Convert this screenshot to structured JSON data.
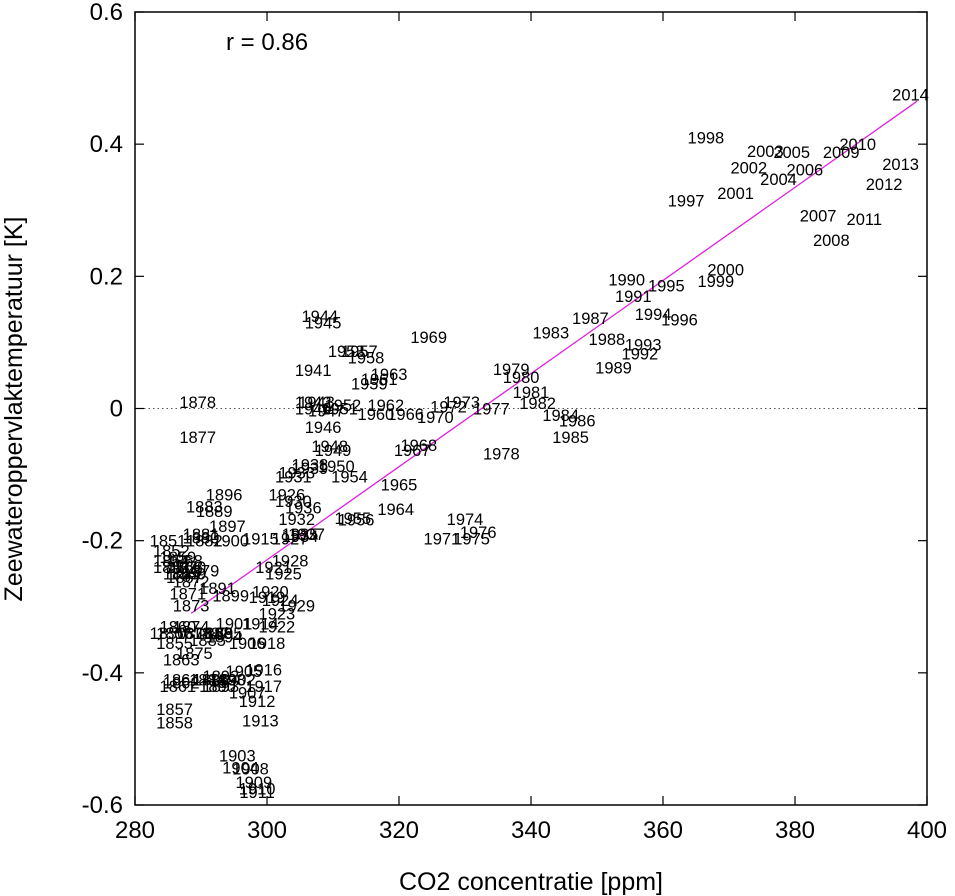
{
  "chart_data": {
    "type": "scatter",
    "title": "",
    "xlabel": "CO2 concentratie [ppm]",
    "ylabel": "Zeewateroppervlaktemperatuur [K]",
    "xlim": [
      280,
      400
    ],
    "ylim": [
      -0.6,
      0.6
    ],
    "xticks": [
      280,
      300,
      320,
      340,
      360,
      380,
      400
    ],
    "yticks": [
      0.6,
      0.4,
      0.2,
      0,
      -0.2,
      -0.4,
      -0.6
    ],
    "ytick_labels": [
      "0.6",
      "0.4",
      "0.2",
      "0",
      "-0.2",
      "-0.4",
      "-0.6"
    ],
    "annotation": "r =  0.86",
    "zero_line": {
      "y": 0,
      "style": "dotted"
    },
    "trend_line": {
      "color": "#e020e0",
      "x": [
        288.5,
        398.5
      ],
      "y": [
        -0.31,
        0.465
      ]
    },
    "point_color": "#000000",
    "points": [
      {
        "label": "2014",
        "x": 397.5,
        "y": 0.475
      },
      {
        "label": "1998",
        "x": 366.5,
        "y": 0.41
      },
      {
        "label": "2003",
        "x": 375.5,
        "y": 0.39
      },
      {
        "label": "2005",
        "x": 379.5,
        "y": 0.388
      },
      {
        "label": "2010",
        "x": 389.5,
        "y": 0.4
      },
      {
        "label": "2009",
        "x": 387.0,
        "y": 0.388
      },
      {
        "label": "2002",
        "x": 373.0,
        "y": 0.365
      },
      {
        "label": "2006",
        "x": 381.5,
        "y": 0.362
      },
      {
        "label": "2013",
        "x": 396.0,
        "y": 0.37
      },
      {
        "label": "2004",
        "x": 377.5,
        "y": 0.347
      },
      {
        "label": "2001",
        "x": 371.0,
        "y": 0.326
      },
      {
        "label": "2012",
        "x": 393.5,
        "y": 0.34
      },
      {
        "label": "1997",
        "x": 363.5,
        "y": 0.315
      },
      {
        "label": "2007",
        "x": 383.5,
        "y": 0.292
      },
      {
        "label": "2011",
        "x": 390.5,
        "y": 0.287
      },
      {
        "label": "2008",
        "x": 385.5,
        "y": 0.255
      },
      {
        "label": "2000",
        "x": 369.5,
        "y": 0.21
      },
      {
        "label": "1999",
        "x": 368.0,
        "y": 0.193
      },
      {
        "label": "1990",
        "x": 354.5,
        "y": 0.195
      },
      {
        "label": "1995",
        "x": 360.5,
        "y": 0.186
      },
      {
        "label": "1991",
        "x": 355.5,
        "y": 0.17
      },
      {
        "label": "1994",
        "x": 358.5,
        "y": 0.143
      },
      {
        "label": "1996",
        "x": 362.5,
        "y": 0.135
      },
      {
        "label": "1987",
        "x": 349.0,
        "y": 0.137
      },
      {
        "label": "1983",
        "x": 343.0,
        "y": 0.115
      },
      {
        "label": "1988",
        "x": 351.5,
        "y": 0.105
      },
      {
        "label": "1993",
        "x": 357.0,
        "y": 0.097
      },
      {
        "label": "1992",
        "x": 356.5,
        "y": 0.083
      },
      {
        "label": "1989",
        "x": 352.5,
        "y": 0.062
      },
      {
        "label": "1979",
        "x": 337.0,
        "y": 0.06
      },
      {
        "label": "1980",
        "x": 338.5,
        "y": 0.048
      },
      {
        "label": "1981",
        "x": 340.0,
        "y": 0.025
      },
      {
        "label": "1982",
        "x": 341.0,
        "y": 0.008
      },
      {
        "label": "1984",
        "x": 344.5,
        "y": -0.01
      },
      {
        "label": "1986",
        "x": 347.0,
        "y": -0.018
      },
      {
        "label": "1985",
        "x": 346.0,
        "y": -0.043
      },
      {
        "label": "1978",
        "x": 335.5,
        "y": -0.068
      },
      {
        "label": "1973",
        "x": 329.5,
        "y": 0.01
      },
      {
        "label": "1972",
        "x": 327.5,
        "y": 0.003
      },
      {
        "label": "1977",
        "x": 334.0,
        "y": 0.0
      },
      {
        "label": "1976",
        "x": 332.0,
        "y": -0.187
      },
      {
        "label": "1974",
        "x": 330.0,
        "y": -0.167
      },
      {
        "label": "1975",
        "x": 331.0,
        "y": -0.197
      },
      {
        "label": "1971",
        "x": 326.5,
        "y": -0.197
      },
      {
        "label": "1970",
        "x": 325.5,
        "y": -0.013
      },
      {
        "label": "1969",
        "x": 324.5,
        "y": 0.108
      },
      {
        "label": "1968",
        "x": 323.0,
        "y": -0.055
      },
      {
        "label": "1967",
        "x": 322.0,
        "y": -0.063
      },
      {
        "label": "1966",
        "x": 321.0,
        "y": -0.008
      },
      {
        "label": "1965",
        "x": 320.0,
        "y": -0.115
      },
      {
        "label": "1964",
        "x": 319.5,
        "y": -0.152
      },
      {
        "label": "1963",
        "x": 318.5,
        "y": 0.052
      },
      {
        "label": "1962",
        "x": 318.0,
        "y": 0.005
      },
      {
        "label": "1961",
        "x": 317.0,
        "y": 0.045
      },
      {
        "label": "1960",
        "x": 316.5,
        "y": -0.008
      },
      {
        "label": "1959",
        "x": 315.5,
        "y": 0.038
      },
      {
        "label": "1958",
        "x": 315.0,
        "y": 0.077
      },
      {
        "label": "1957",
        "x": 314.0,
        "y": 0.087
      },
      {
        "label": "1956",
        "x": 313.5,
        "y": -0.168
      },
      {
        "label": "1955",
        "x": 313.0,
        "y": -0.166
      },
      {
        "label": "1954",
        "x": 312.5,
        "y": -0.103
      },
      {
        "label": "1953",
        "x": 312.0,
        "y": 0.087
      },
      {
        "label": "1952",
        "x": 311.5,
        "y": 0.005
      },
      {
        "label": "1951",
        "x": 311.0,
        "y": 0.0
      },
      {
        "label": "1950",
        "x": 310.5,
        "y": -0.087
      },
      {
        "label": "1949",
        "x": 310.0,
        "y": -0.063
      },
      {
        "label": "1948",
        "x": 309.5,
        "y": -0.057
      },
      {
        "label": "1947",
        "x": 309.0,
        "y": -0.003
      },
      {
        "label": "1946",
        "x": 308.5,
        "y": -0.028
      },
      {
        "label": "1945",
        "x": 308.5,
        "y": 0.13
      },
      {
        "label": "1944",
        "x": 308.0,
        "y": 0.14
      },
      {
        "label": "1943",
        "x": 307.5,
        "y": 0.01
      },
      {
        "label": "1942",
        "x": 307.0,
        "y": 0.01
      },
      {
        "label": "1941",
        "x": 307.0,
        "y": 0.058
      },
      {
        "label": "1940",
        "x": 307.0,
        "y": 0.0
      },
      {
        "label": "1939",
        "x": 306.5,
        "y": -0.09
      },
      {
        "label": "1938",
        "x": 306.5,
        "y": -0.085
      },
      {
        "label": "1937",
        "x": 306.0,
        "y": -0.19
      },
      {
        "label": "1936",
        "x": 305.5,
        "y": -0.15
      },
      {
        "label": "1935",
        "x": 305.0,
        "y": -0.19
      },
      {
        "label": "1934",
        "x": 305.0,
        "y": -0.193
      },
      {
        "label": "1933",
        "x": 304.5,
        "y": -0.097
      },
      {
        "label": "1932",
        "x": 304.5,
        "y": -0.167
      },
      {
        "label": "1931",
        "x": 304.0,
        "y": -0.103
      },
      {
        "label": "1930",
        "x": 304.0,
        "y": -0.14
      },
      {
        "label": "1929",
        "x": 304.5,
        "y": -0.298
      },
      {
        "label": "1928",
        "x": 303.5,
        "y": -0.23
      },
      {
        "label": "1927",
        "x": 303.5,
        "y": -0.197
      },
      {
        "label": "1926",
        "x": 303.0,
        "y": -0.13
      },
      {
        "label": "1925",
        "x": 302.5,
        "y": -0.25
      },
      {
        "label": "1924",
        "x": 302.0,
        "y": -0.29
      },
      {
        "label": "1923",
        "x": 301.5,
        "y": -0.31
      },
      {
        "label": "1922",
        "x": 301.5,
        "y": -0.33
      },
      {
        "label": "1921",
        "x": 301.0,
        "y": -0.24
      },
      {
        "label": "1920",
        "x": 300.5,
        "y": -0.277
      },
      {
        "label": "1919",
        "x": 300.0,
        "y": -0.285
      },
      {
        "label": "1918",
        "x": 300.0,
        "y": -0.355
      },
      {
        "label": "1917",
        "x": 299.5,
        "y": -0.42
      },
      {
        "label": "1916",
        "x": 299.5,
        "y": -0.395
      },
      {
        "label": "1915",
        "x": 299.0,
        "y": -0.197
      },
      {
        "label": "1914",
        "x": 299.0,
        "y": -0.325
      },
      {
        "label": "1913",
        "x": 299.0,
        "y": -0.472
      },
      {
        "label": "1912",
        "x": 298.5,
        "y": -0.443
      },
      {
        "label": "1911",
        "x": 298.5,
        "y": -0.58
      },
      {
        "label": "1910",
        "x": 298.5,
        "y": -0.575
      },
      {
        "label": "1909",
        "x": 298.0,
        "y": -0.565
      },
      {
        "label": "1908",
        "x": 297.5,
        "y": -0.545
      },
      {
        "label": "1907",
        "x": 297.0,
        "y": -0.43
      },
      {
        "label": "1906",
        "x": 297.0,
        "y": -0.355
      },
      {
        "label": "1905",
        "x": 296.5,
        "y": -0.397
      },
      {
        "label": "1904",
        "x": 296.0,
        "y": -0.543
      },
      {
        "label": "1903",
        "x": 295.5,
        "y": -0.525
      },
      {
        "label": "1902",
        "x": 295.5,
        "y": -0.41
      },
      {
        "label": "1901",
        "x": 295.0,
        "y": -0.325
      },
      {
        "label": "1900",
        "x": 294.5,
        "y": -0.2
      },
      {
        "label": "1899",
        "x": 294.5,
        "y": -0.283
      },
      {
        "label": "1898",
        "x": 294.0,
        "y": -0.41
      },
      {
        "label": "1897",
        "x": 294.0,
        "y": -0.178
      },
      {
        "label": "1896",
        "x": 293.5,
        "y": -0.13
      },
      {
        "label": "1895",
        "x": 293.5,
        "y": -0.34
      },
      {
        "label": "1894",
        "x": 293.5,
        "y": -0.345
      },
      {
        "label": "1893",
        "x": 293.0,
        "y": -0.42
      },
      {
        "label": "1892",
        "x": 293.0,
        "y": -0.405
      },
      {
        "label": "1891",
        "x": 292.5,
        "y": -0.272
      },
      {
        "label": "1890",
        "x": 292.5,
        "y": -0.42
      },
      {
        "label": "1889",
        "x": 292.0,
        "y": -0.155
      },
      {
        "label": "1888",
        "x": 292.0,
        "y": -0.34
      },
      {
        "label": "1887",
        "x": 291.5,
        "y": -0.34
      },
      {
        "label": "1886",
        "x": 291.5,
        "y": -0.41
      },
      {
        "label": "1885",
        "x": 291.0,
        "y": -0.35
      },
      {
        "label": "1884",
        "x": 291.0,
        "y": -0.41
      },
      {
        "label": "1883",
        "x": 290.5,
        "y": -0.148
      },
      {
        "label": "1882",
        "x": 290.5,
        "y": -0.2
      },
      {
        "label": "1881",
        "x": 290.0,
        "y": -0.19
      },
      {
        "label": "1880",
        "x": 290.0,
        "y": -0.195
      },
      {
        "label": "1879",
        "x": 290.0,
        "y": -0.245
      },
      {
        "label": "1878",
        "x": 289.5,
        "y": 0.01
      },
      {
        "label": "1877",
        "x": 289.5,
        "y": -0.043
      },
      {
        "label": "1876",
        "x": 289.0,
        "y": -0.34
      },
      {
        "label": "1875",
        "x": 289.0,
        "y": -0.37
      },
      {
        "label": "1874",
        "x": 288.5,
        "y": -0.33
      },
      {
        "label": "1873",
        "x": 288.5,
        "y": -0.298
      },
      {
        "label": "1872",
        "x": 288.5,
        "y": -0.262
      },
      {
        "label": "1871",
        "x": 288.0,
        "y": -0.28
      },
      {
        "label": "1870",
        "x": 288.0,
        "y": -0.24
      },
      {
        "label": "1869",
        "x": 288.0,
        "y": -0.25
      },
      {
        "label": "1868",
        "x": 287.5,
        "y": -0.23
      },
      {
        "label": "1867",
        "x": 287.5,
        "y": -0.255
      },
      {
        "label": "1866",
        "x": 287.5,
        "y": -0.24
      },
      {
        "label": "1865",
        "x": 287.0,
        "y": -0.25
      },
      {
        "label": "1864",
        "x": 287.0,
        "y": -0.41
      },
      {
        "label": "1863",
        "x": 287.0,
        "y": -0.38
      },
      {
        "label": "1862",
        "x": 287.0,
        "y": -0.415
      },
      {
        "label": "1861",
        "x": 286.5,
        "y": -0.42
      },
      {
        "label": "1860",
        "x": 286.5,
        "y": -0.33
      },
      {
        "label": "1859",
        "x": 286.5,
        "y": -0.225
      },
      {
        "label": "1858",
        "x": 286.0,
        "y": -0.475
      },
      {
        "label": "1857",
        "x": 286.0,
        "y": -0.455
      },
      {
        "label": "1856",
        "x": 286.0,
        "y": -0.34
      },
      {
        "label": "1855",
        "x": 286.0,
        "y": -0.355
      },
      {
        "label": "1854",
        "x": 285.5,
        "y": -0.23
      },
      {
        "label": "1853",
        "x": 285.5,
        "y": -0.24
      },
      {
        "label": "1852",
        "x": 285.5,
        "y": -0.215
      },
      {
        "label": "1851",
        "x": 285.0,
        "y": -0.2
      },
      {
        "label": "1850",
        "x": 285.0,
        "y": -0.34
      }
    ]
  }
}
